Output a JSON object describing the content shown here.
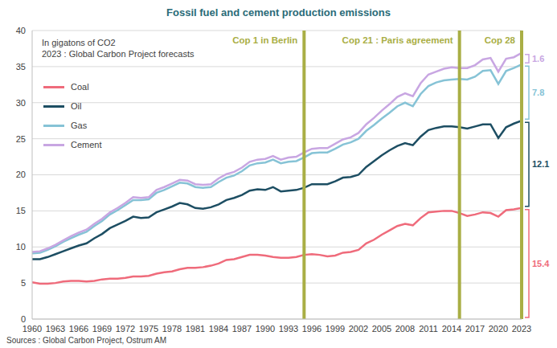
{
  "chart_data": {
    "type": "line",
    "title": "Fossil fuel and cement production emissions",
    "subtitle": [
      "In gigatons of CO2",
      "2023 : Global Carbon Project forecasts"
    ],
    "source": "Sources : Global Carbon Project, Ostrum AM",
    "stacked": true,
    "grid": true,
    "legend": "top-left",
    "x": [
      1960,
      1961,
      1962,
      1963,
      1964,
      1965,
      1966,
      1967,
      1968,
      1969,
      1970,
      1971,
      1972,
      1973,
      1974,
      1975,
      1976,
      1977,
      1978,
      1979,
      1980,
      1981,
      1982,
      1983,
      1984,
      1985,
      1986,
      1987,
      1988,
      1989,
      1990,
      1991,
      1992,
      1993,
      1994,
      1995,
      1996,
      1997,
      1998,
      1999,
      2000,
      2001,
      2002,
      2003,
      2004,
      2005,
      2006,
      2007,
      2008,
      2009,
      2010,
      2011,
      2012,
      2013,
      2014,
      2015,
      2016,
      2017,
      2018,
      2019,
      2020,
      2021,
      2022,
      2023
    ],
    "xlim": [
      1960,
      2023
    ],
    "xticks": [
      1960,
      1963,
      1966,
      1969,
      1972,
      1975,
      1978,
      1981,
      1984,
      1987,
      1990,
      1993,
      1996,
      1999,
      2002,
      2005,
      2008,
      2011,
      2014,
      2017,
      2020,
      2023
    ],
    "ylim": [
      0,
      40
    ],
    "yticks": [
      0,
      5,
      10,
      15,
      20,
      25,
      30,
      35,
      40
    ],
    "series": [
      {
        "name": "Coal",
        "color": "#ef6b7b",
        "values": [
          5.1,
          4.9,
          4.9,
          5.0,
          5.2,
          5.3,
          5.3,
          5.2,
          5.3,
          5.5,
          5.6,
          5.6,
          5.7,
          5.9,
          5.9,
          6.0,
          6.3,
          6.5,
          6.6,
          6.9,
          7.1,
          7.1,
          7.2,
          7.4,
          7.7,
          8.2,
          8.3,
          8.6,
          8.9,
          8.9,
          8.8,
          8.6,
          8.5,
          8.5,
          8.6,
          8.9,
          9.0,
          8.9,
          8.7,
          8.8,
          9.2,
          9.3,
          9.6,
          10.5,
          11.0,
          11.7,
          12.3,
          12.9,
          13.2,
          13.0,
          14.0,
          14.8,
          14.9,
          15.0,
          15.0,
          14.7,
          14.3,
          14.5,
          14.8,
          14.7,
          14.2,
          15.1,
          15.2,
          15.4
        ]
      },
      {
        "name": "Oil",
        "color": "#1d4e63",
        "values": [
          3.2,
          3.4,
          3.7,
          4.0,
          4.2,
          4.5,
          4.9,
          5.3,
          5.9,
          6.3,
          7.0,
          7.5,
          7.9,
          8.3,
          8.1,
          8.1,
          8.5,
          8.7,
          9.0,
          9.2,
          8.8,
          8.3,
          8.1,
          8.1,
          8.2,
          8.3,
          8.5,
          8.6,
          8.9,
          9.1,
          9.1,
          9.7,
          9.2,
          9.3,
          9.3,
          9.3,
          9.7,
          9.8,
          10.0,
          10.3,
          10.4,
          10.4,
          10.4,
          10.6,
          10.9,
          11.0,
          11.1,
          11.1,
          11.2,
          11.1,
          11.3,
          11.4,
          11.6,
          11.7,
          11.7,
          11.9,
          12.1,
          12.2,
          12.2,
          12.3,
          10.9,
          11.5,
          11.9,
          12.1
        ]
      },
      {
        "name": "Gas",
        "color": "#86c3d6",
        "values": [
          0.8,
          0.9,
          1.0,
          1.1,
          1.3,
          1.4,
          1.5,
          1.6,
          1.7,
          1.8,
          1.9,
          2.0,
          2.2,
          2.3,
          2.5,
          2.5,
          2.7,
          2.7,
          2.8,
          2.8,
          2.9,
          2.9,
          2.9,
          2.8,
          3.1,
          3.1,
          3.1,
          3.3,
          3.5,
          3.6,
          3.8,
          3.8,
          3.9,
          4.0,
          4.0,
          4.2,
          4.3,
          4.4,
          4.4,
          4.5,
          4.6,
          4.8,
          5.0,
          5.0,
          5.0,
          5.1,
          5.2,
          5.5,
          5.6,
          5.4,
          5.9,
          6.1,
          6.3,
          6.4,
          6.5,
          6.7,
          6.8,
          6.9,
          7.4,
          7.5,
          7.5,
          7.8,
          7.7,
          7.8
        ]
      },
      {
        "name": "Cement",
        "color": "#c8a6e2",
        "values": [
          0.2,
          0.2,
          0.2,
          0.2,
          0.2,
          0.3,
          0.3,
          0.3,
          0.3,
          0.3,
          0.3,
          0.3,
          0.3,
          0.4,
          0.3,
          0.3,
          0.4,
          0.4,
          0.4,
          0.4,
          0.4,
          0.4,
          0.4,
          0.4,
          0.5,
          0.5,
          0.5,
          0.5,
          0.5,
          0.5,
          0.5,
          0.5,
          0.5,
          0.6,
          0.6,
          0.7,
          0.6,
          0.6,
          0.6,
          0.7,
          0.7,
          0.7,
          0.8,
          0.9,
          1.0,
          1.1,
          1.2,
          1.3,
          1.3,
          1.4,
          1.5,
          1.6,
          1.5,
          1.6,
          1.7,
          1.5,
          1.6,
          1.6,
          1.6,
          1.7,
          1.7,
          1.7,
          1.5,
          1.6
        ]
      }
    ],
    "reference_lines": [
      {
        "x": 1995,
        "label": "Cop 1 in Berlin",
        "color": "#a9ae45"
      },
      {
        "x": 2015,
        "label": "Cop 21 : Paris agreement",
        "color": "#a9ae45"
      },
      {
        "x": 2023,
        "label": "Cop 28",
        "color": "#a9ae45"
      }
    ],
    "annotations": [
      {
        "series": "Cement",
        "x": 2023,
        "text": "1.6"
      },
      {
        "series": "Gas",
        "x": 2023,
        "text": "7.8"
      },
      {
        "series": "Oil",
        "x": 2023,
        "text": "12.1"
      },
      {
        "series": "Coal",
        "x": 2023,
        "text": "15.4"
      }
    ]
  }
}
